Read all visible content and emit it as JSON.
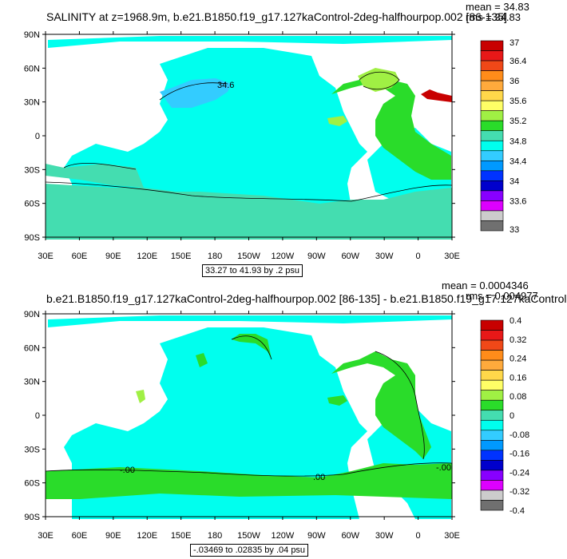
{
  "panels": [
    {
      "title": "SALINITY at z=1968.9m, b.e21.B1850.f19_g17.127kaControl-2deg-halfhourpop.002 [86-135]",
      "stat_mean": "mean = 34.83",
      "stat_rms": "rms = 34.83",
      "range_label": "33.27 to 41.93 by .2 psu",
      "contour_labels": [
        "34.6"
      ],
      "y_tick_labels": [
        "90N",
        "60N",
        "30N",
        "0",
        "30S",
        "60S",
        "90S"
      ],
      "x_tick_labels": [
        "30E",
        "60E",
        "90E",
        "120E",
        "150E",
        "180",
        "150W",
        "120W",
        "90W",
        "60W",
        "30W",
        "0",
        "30E"
      ],
      "colorbar_labels": [
        "37",
        "36.4",
        "36",
        "35.6",
        "35.2",
        "34.8",
        "34.4",
        "34",
        "33.6",
        "33"
      ],
      "colorbar_colors": [
        "#c80000",
        "#e81818",
        "#f04818",
        "#ff8c1a",
        "#ffaa3c",
        "#ffd84a",
        "#ffff66",
        "#a0f044",
        "#2adc2a",
        "#44ddb0",
        "#00ffee",
        "#33ccff",
        "#0099ff",
        "#0033ff",
        "#0000cc",
        "#8800ff",
        "#dd00ff",
        "#cccccc",
        "#707070"
      ]
    },
    {
      "title": "b.e21.B1850.f19_g17.127kaControl-2deg-halfhourpop.002 [86-135] - b.e21.B1850.f19_g17.127kaControl",
      "stat_mean": "mean = 0.0004346",
      "stat_rms": "rms = 0.004977",
      "range_label": "-.03469 to .02835 by .04 psu",
      "contour_labels": [
        "-.00",
        ".00",
        "-.00"
      ],
      "y_tick_labels": [
        "90N",
        "60N",
        "30N",
        "0",
        "30S",
        "60S",
        "90S"
      ],
      "x_tick_labels": [
        "30E",
        "60E",
        "90E",
        "120E",
        "150E",
        "180",
        "150W",
        "120W",
        "90W",
        "60W",
        "30W",
        "0",
        "30E"
      ],
      "colorbar_labels": [
        "0.4",
        "0.32",
        "0.24",
        "0.16",
        "0.08",
        "0",
        "-0.08",
        "-0.16",
        "-0.24",
        "-0.32",
        "-0.4"
      ],
      "colorbar_colors": [
        "#c80000",
        "#e81818",
        "#f04818",
        "#ff8c1a",
        "#ffaa3c",
        "#ffd84a",
        "#ffff66",
        "#a0f044",
        "#2adc2a",
        "#44ddb0",
        "#00ffee",
        "#33ccff",
        "#0099ff",
        "#0033ff",
        "#0000cc",
        "#8800ff",
        "#dd00ff",
        "#cccccc",
        "#707070"
      ]
    }
  ],
  "colors": {
    "ocean_main": "#00ffee",
    "ocean_light_blue": "#33ccff",
    "ocean_teal": "#44ddb0",
    "ocean_green": "#2adc2a",
    "ocean_lime": "#a0f044",
    "ocean_red": "#c80000",
    "land": "#ffffff"
  }
}
